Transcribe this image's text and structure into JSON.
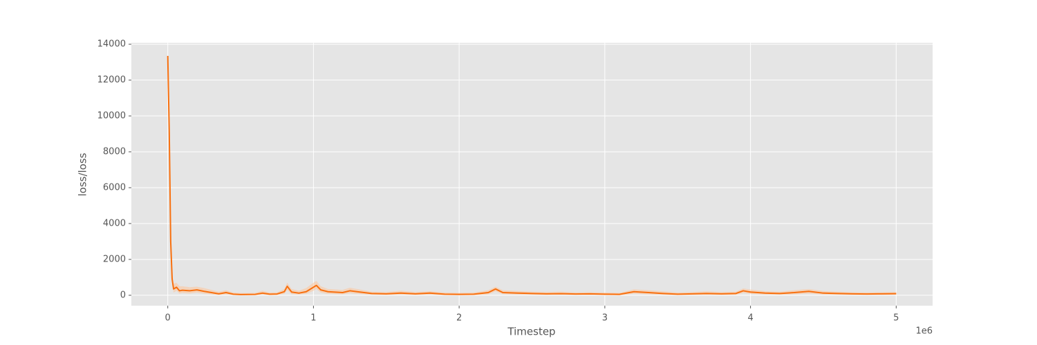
{
  "chart_data": {
    "type": "line",
    "xlabel": "Timestep",
    "ylabel": "loss/loss",
    "x_offset_label": "1e6",
    "x": [
      0,
      10000,
      20000,
      30000,
      40000,
      60000,
      80000,
      100000,
      150000,
      200000,
      250000,
      300000,
      350000,
      400000,
      450000,
      500000,
      600000,
      650000,
      700000,
      750000,
      800000,
      820000,
      850000,
      900000,
      950000,
      1000000,
      1020000,
      1050000,
      1100000,
      1200000,
      1250000,
      1300000,
      1400000,
      1500000,
      1600000,
      1700000,
      1800000,
      1900000,
      2000000,
      2100000,
      2200000,
      2250000,
      2300000,
      2400000,
      2500000,
      2600000,
      2700000,
      2800000,
      2900000,
      3000000,
      3100000,
      3200000,
      3300000,
      3400000,
      3500000,
      3600000,
      3700000,
      3800000,
      3900000,
      3950000,
      4000000,
      4100000,
      4200000,
      4300000,
      4400000,
      4500000,
      4600000,
      4700000,
      4800000,
      4900000,
      5000000
    ],
    "series": [
      {
        "color": "#f8700f",
        "band_color": "#fbc79e",
        "values": [
          13350,
          9200,
          3000,
          900,
          350,
          450,
          250,
          280,
          250,
          300,
          220,
          150,
          80,
          150,
          60,
          40,
          50,
          120,
          60,
          70,
          200,
          500,
          180,
          120,
          200,
          450,
          550,
          300,
          200,
          150,
          250,
          200,
          100,
          80,
          120,
          80,
          120,
          60,
          50,
          60,
          150,
          350,
          150,
          120,
          100,
          80,
          90,
          70,
          80,
          60,
          50,
          200,
          150,
          100,
          60,
          80,
          100,
          80,
          100,
          250,
          180,
          120,
          100,
          150,
          220,
          120,
          100,
          80,
          70,
          80,
          90
        ],
        "upper": [
          13400,
          9500,
          3500,
          1300,
          650,
          700,
          500,
          500,
          450,
          480,
          400,
          300,
          200,
          280,
          150,
          120,
          130,
          250,
          150,
          160,
          350,
          700,
          350,
          250,
          400,
          700,
          800,
          500,
          350,
          300,
          420,
          350,
          200,
          180,
          250,
          180,
          230,
          150,
          130,
          150,
          280,
          480,
          280,
          240,
          200,
          180,
          200,
          160,
          170,
          150,
          130,
          330,
          280,
          220,
          150,
          180,
          220,
          180,
          200,
          380,
          320,
          230,
          200,
          280,
          350,
          240,
          200,
          170,
          160,
          170,
          180
        ],
        "lower": [
          13300,
          8900,
          2600,
          600,
          150,
          250,
          100,
          120,
          100,
          150,
          90,
          50,
          20,
          50,
          10,
          0,
          10,
          40,
          10,
          20,
          80,
          300,
          60,
          40,
          80,
          250,
          350,
          150,
          80,
          50,
          120,
          80,
          30,
          20,
          40,
          20,
          40,
          10,
          0,
          10,
          50,
          220,
          60,
          40,
          30,
          20,
          30,
          20,
          20,
          10,
          0,
          90,
          50,
          30,
          10,
          20,
          30,
          20,
          30,
          130,
          80,
          40,
          30,
          50,
          100,
          40,
          30,
          20,
          20,
          20,
          30
        ]
      }
    ],
    "xlim": [
      -250000,
      5250000
    ],
    "ylim": [
      -580,
      14080
    ],
    "xticks": [
      0,
      {
        "value": 1000000,
        "label": "1"
      },
      {
        "value": 2000000,
        "label": "2"
      },
      {
        "value": 3000000,
        "label": "3"
      },
      {
        "value": 4000000,
        "label": "4"
      },
      {
        "value": 5000000,
        "label": "5"
      }
    ],
    "yticks": [
      0,
      2000,
      4000,
      6000,
      8000,
      10000,
      12000,
      14000
    ],
    "grid": true,
    "background": "#e5e5e5",
    "grid_color": "#ffffff"
  }
}
